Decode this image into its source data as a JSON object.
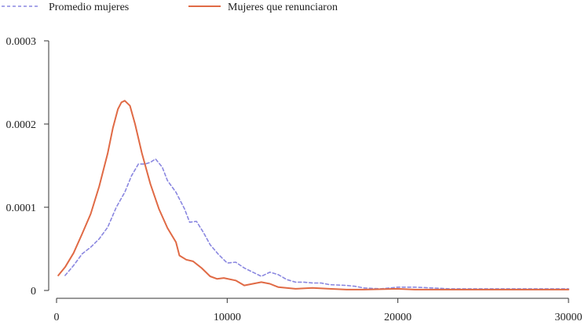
{
  "chart_data": {
    "type": "line",
    "title": "",
    "xlabel": "",
    "ylabel": "",
    "xlim": [
      0,
      30000
    ],
    "ylim": [
      0,
      0.0003
    ],
    "grid": false,
    "legend_position": "top-left",
    "x_ticks": [
      {
        "value": 0,
        "label": "0"
      },
      {
        "value": 10000,
        "label": "10000"
      },
      {
        "value": 20000,
        "label": "20000"
      },
      {
        "value": 30000,
        "label": "30000"
      }
    ],
    "y_ticks": [
      {
        "value": 0,
        "label": "0"
      },
      {
        "value": 0.0001,
        "label": "0.0001"
      },
      {
        "value": 0.0002,
        "label": "0.0002"
      },
      {
        "value": 0.0003,
        "label": "0.0003"
      }
    ],
    "series": [
      {
        "name": "Promedio mujeres",
        "color": "#8a87e0",
        "style": "dashed",
        "points": [
          [
            500,
            1.8e-05
          ],
          [
            1000,
            3e-05
          ],
          [
            1500,
            4.4e-05
          ],
          [
            2000,
            5.2e-05
          ],
          [
            2500,
            6.2e-05
          ],
          [
            3000,
            7.6e-05
          ],
          [
            3500,
            0.0001
          ],
          [
            4000,
            0.000118
          ],
          [
            4400,
            0.000138
          ],
          [
            4800,
            0.000152
          ],
          [
            5200,
            0.000152
          ],
          [
            5500,
            0.000154
          ],
          [
            5800,
            0.000158
          ],
          [
            6200,
            0.000148
          ],
          [
            6500,
            0.000132
          ],
          [
            7000,
            0.000118
          ],
          [
            7500,
            9.8e-05
          ],
          [
            7800,
            8.2e-05
          ],
          [
            8200,
            8.3e-05
          ],
          [
            8600,
            7e-05
          ],
          [
            9000,
            5.5e-05
          ],
          [
            9500,
            4.3e-05
          ],
          [
            10000,
            3.3e-05
          ],
          [
            10500,
            3.4e-05
          ],
          [
            11000,
            2.7e-05
          ],
          [
            11500,
            2.2e-05
          ],
          [
            12000,
            1.7e-05
          ],
          [
            12500,
            2.2e-05
          ],
          [
            13000,
            1.9e-05
          ],
          [
            13500,
            1.3e-05
          ],
          [
            14000,
            1e-05
          ],
          [
            14500,
            1e-05
          ],
          [
            15000,
            9e-06
          ],
          [
            15500,
            9e-06
          ],
          [
            16000,
            7e-06
          ],
          [
            17000,
            6e-06
          ],
          [
            17500,
            5e-06
          ],
          [
            18000,
            3e-06
          ],
          [
            19000,
            2e-06
          ],
          [
            20000,
            4e-06
          ],
          [
            21000,
            4e-06
          ],
          [
            22000,
            3e-06
          ],
          [
            23000,
            2e-06
          ],
          [
            24000,
            2e-06
          ],
          [
            25000,
            2e-06
          ],
          [
            26000,
            2e-06
          ],
          [
            27000,
            2e-06
          ],
          [
            28000,
            2e-06
          ],
          [
            29000,
            2e-06
          ],
          [
            30000,
            2e-06
          ]
        ]
      },
      {
        "name": "Mujeres que renunciaron",
        "color": "#e06a45",
        "style": "solid",
        "points": [
          [
            100,
            1.8e-05
          ],
          [
            500,
            2.8e-05
          ],
          [
            1000,
            4.5e-05
          ],
          [
            1500,
            6.8e-05
          ],
          [
            2000,
            9.2e-05
          ],
          [
            2500,
            0.000125
          ],
          [
            3000,
            0.000165
          ],
          [
            3300,
            0.000195
          ],
          [
            3600,
            0.000218
          ],
          [
            3800,
            0.000226
          ],
          [
            4000,
            0.000228
          ],
          [
            4300,
            0.000222
          ],
          [
            4600,
            0.0002
          ],
          [
            5000,
            0.000165
          ],
          [
            5500,
            0.000128
          ],
          [
            6000,
            9.8e-05
          ],
          [
            6500,
            7.5e-05
          ],
          [
            7000,
            5.8e-05
          ],
          [
            7200,
            4.2e-05
          ],
          [
            7600,
            3.7e-05
          ],
          [
            8000,
            3.5e-05
          ],
          [
            8500,
            2.7e-05
          ],
          [
            9000,
            1.7e-05
          ],
          [
            9400,
            1.4e-05
          ],
          [
            9800,
            1.5e-05
          ],
          [
            10500,
            1.2e-05
          ],
          [
            11000,
            6e-06
          ],
          [
            11500,
            8e-06
          ],
          [
            12000,
            1e-05
          ],
          [
            12500,
            8e-06
          ],
          [
            13000,
            4e-06
          ],
          [
            14000,
            2e-06
          ],
          [
            15000,
            3e-06
          ],
          [
            16000,
            2e-06
          ],
          [
            17000,
            1e-06
          ],
          [
            18000,
            1e-06
          ],
          [
            20000,
            2e-06
          ],
          [
            21000,
            1e-06
          ],
          [
            23000,
            1e-06
          ],
          [
            25000,
            1e-06
          ],
          [
            27000,
            1e-06
          ],
          [
            30000,
            1e-06
          ]
        ]
      }
    ]
  }
}
